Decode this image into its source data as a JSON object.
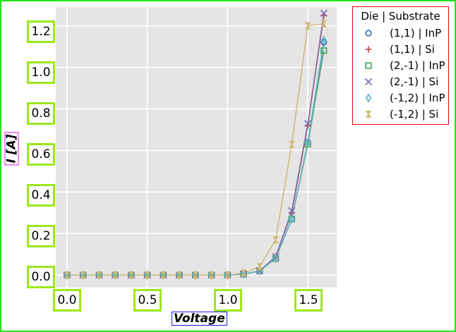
{
  "chart_data": {
    "type": "line",
    "xlabel": "Voltage",
    "ylabel": "I [A]",
    "xlim": [
      -0.07,
      1.68
    ],
    "ylim": [
      -0.06,
      1.29
    ],
    "x_ticks": [
      "0.0",
      "0.5",
      "1.0",
      "1.5"
    ],
    "y_ticks": [
      "0.0",
      "0.2",
      "0.4",
      "0.6",
      "0.8",
      "1.0",
      "1.2"
    ],
    "grid": true,
    "background": "#e5e5e5",
    "x": [
      0.0,
      0.1,
      0.2,
      0.3,
      0.4,
      0.5,
      0.6,
      0.7,
      0.8,
      0.9,
      1.0,
      1.1,
      1.2,
      1.3,
      1.4,
      1.5,
      1.6
    ],
    "legend": {
      "title": "Die | Substrate",
      "placement": "upper-right, outside plot"
    },
    "series": [
      {
        "name": "(1,1) | InP",
        "marker": "circle",
        "color": "#4c72b0",
        "values": [
          0,
          0,
          0,
          0,
          0,
          0,
          0,
          0,
          0,
          0,
          0,
          0.005,
          0.02,
          0.08,
          0.27,
          0.64,
          1.12
        ]
      },
      {
        "name": "(1,1) | Si",
        "marker": "plus",
        "color": "#c44e52",
        "values": [
          0,
          0,
          0,
          0,
          0,
          0,
          0,
          0,
          0,
          0,
          0,
          0.005,
          0.02,
          0.09,
          0.3,
          0.72,
          1.25
        ]
      },
      {
        "name": "(2,-1) | InP",
        "marker": "square",
        "color": "#55a868",
        "values": [
          0,
          0,
          0,
          0,
          0,
          0,
          0,
          0,
          0,
          0,
          0,
          0.005,
          0.02,
          0.08,
          0.27,
          0.63,
          1.08
        ]
      },
      {
        "name": "(2,-1) | Si",
        "marker": "x",
        "color": "#8172b2",
        "values": [
          0,
          0,
          0,
          0,
          0,
          0,
          0,
          0,
          0,
          0,
          0,
          0.005,
          0.02,
          0.09,
          0.31,
          0.73,
          1.26
        ]
      },
      {
        "name": "(-1,2) | InP",
        "marker": "diamond",
        "color": "#64b5cd",
        "values": [
          0,
          0,
          0,
          0,
          0,
          0,
          0,
          0,
          0,
          0,
          0,
          0.005,
          0.02,
          0.08,
          0.27,
          0.64,
          1.13
        ]
      },
      {
        "name": "(-1,2) | Si",
        "marker": "hourglass",
        "color": "#ccb974",
        "values": [
          0,
          0,
          0,
          0,
          0,
          0,
          0,
          0,
          0,
          0,
          0,
          0.01,
          0.04,
          0.17,
          0.63,
          1.2,
          1.21
        ]
      }
    ]
  }
}
